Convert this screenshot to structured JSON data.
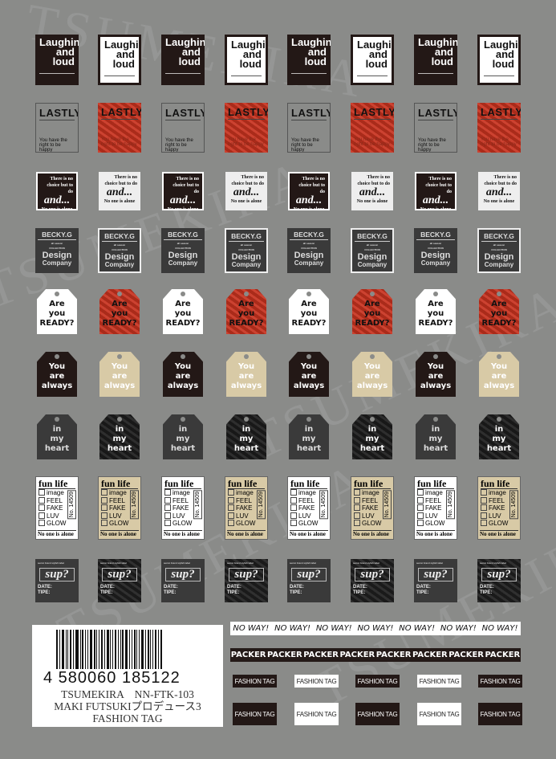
{
  "watermark": "TSUMEKIRA",
  "colors": {
    "background": "#8a8b89",
    "black": "#231816",
    "red": "#c8321f",
    "beige": "#d8caa6",
    "darkgray": "#3a3a3a",
    "white": "#ffffff"
  },
  "rows": {
    "laughing": {
      "lines": [
        "Laughing",
        "and",
        "loud"
      ],
      "variants": [
        "black",
        "white"
      ]
    },
    "lastly": {
      "title": "LASTLY",
      "body": "You have the right to be happy",
      "variants": [
        "gray",
        "red"
      ]
    },
    "choice": {
      "top": "There is no choice but to do",
      "big": "and...",
      "foot": "No one is alone",
      "variants": [
        "black",
        "white"
      ]
    },
    "becky": {
      "title": "BECKY.G",
      "sub": "all season",
      "collection": "COLLECTION",
      "design": "Design",
      "company": "Company",
      "variants": [
        "plain",
        "bordered"
      ]
    },
    "ready_tag": {
      "lines": [
        "Are",
        "you",
        "READY?"
      ],
      "variants": [
        "white",
        "red"
      ]
    },
    "always_tag": {
      "lines": [
        "You",
        "are",
        "always"
      ],
      "variants": [
        "black",
        "beige"
      ]
    },
    "heart_tag": {
      "lines": [
        "in",
        "my",
        "heart"
      ],
      "variants": [
        "darkgray",
        "blacktexture"
      ]
    },
    "funlife": {
      "title": "fun life",
      "items": [
        "image",
        "FEEL",
        "FAKE",
        "LUV",
        "GLOW"
      ],
      "number": "No. 14509",
      "foot": "No one is alone",
      "variants": [
        "white",
        "beige"
      ]
    },
    "sup": {
      "fine": "secret brand stylish label",
      "word": "sup?",
      "date": "DATE:",
      "type": "TIPE:",
      "variants": [
        "darkgray",
        "blacktexture"
      ]
    }
  },
  "product_card": {
    "barcode_number": "4 580060 185122",
    "line1": "TSUMEKIRA　NN-FTK-103",
    "line2": "MAKI FUTSUKIプロデュース3",
    "line3": "FASHION TAG"
  },
  "noway_strip": {
    "text": "NO WAY!",
    "count": 7
  },
  "packer_strip": {
    "text": "PACKER",
    "count": 8
  },
  "fashion_tags": {
    "text": "FASHION TAG",
    "variants": [
      "black",
      "white",
      "black",
      "white",
      "black"
    ]
  }
}
